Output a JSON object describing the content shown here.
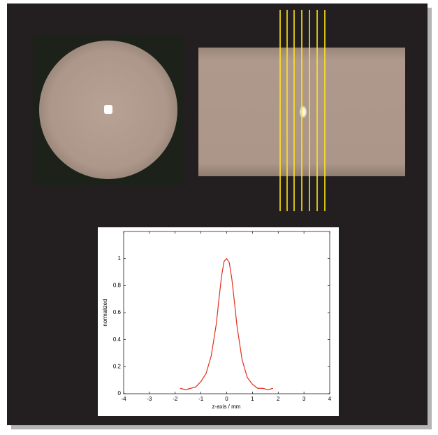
{
  "chart_data": {
    "type": "line",
    "xlabel": "z-axis / mm",
    "ylabel": "normalized",
    "x": [
      -1.8,
      -1.6,
      -1.4,
      -1.2,
      -1.0,
      -0.8,
      -0.6,
      -0.4,
      -0.3,
      -0.2,
      -0.1,
      0,
      0.1,
      0.2,
      0.3,
      0.4,
      0.6,
      0.8,
      1.0,
      1.2,
      1.4,
      1.6,
      1.8
    ],
    "series": [
      {
        "color": "#e0301e",
        "values": [
          0.04,
          0.03,
          0.04,
          0.05,
          0.09,
          0.15,
          0.28,
          0.52,
          0.7,
          0.87,
          0.98,
          1.0,
          0.97,
          0.85,
          0.68,
          0.5,
          0.25,
          0.12,
          0.07,
          0.04,
          0.04,
          0.03,
          0.04
        ]
      }
    ],
    "xlim": [
      -4,
      4
    ],
    "xticks": [
      -4,
      -3,
      -2,
      -1,
      0,
      1,
      2,
      3,
      4
    ],
    "ylim": [
      0,
      1.2
    ],
    "yticks": [
      0,
      0.2,
      0.4,
      0.6,
      0.8,
      1
    ],
    "grid": false
  }
}
